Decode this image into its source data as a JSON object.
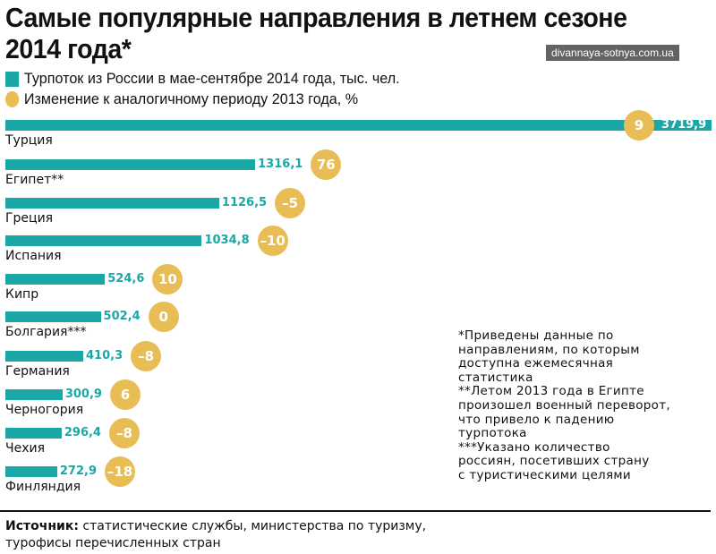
{
  "watermark": "divannaya-sotnya.com.ua",
  "chart_data": {
    "type": "bar",
    "title": "Самые популярные направления в летнем сезоне 2014 года*",
    "legend": [
      {
        "name": "Турпоток из России в мае-сентябре 2014 года, тыс. чел.",
        "color": "#1aa7a5",
        "marker": "square"
      },
      {
        "name": "Изменение к аналогичному периоду 2013 года, %",
        "color": "#e8bd55",
        "marker": "circle"
      }
    ],
    "orientation": "horizontal",
    "categories": [
      "Турция",
      "Египет**",
      "Греция",
      "Испания",
      "Кипр",
      "Болгария***",
      "Германия",
      "Черногория",
      "Чехия",
      "Финляндия"
    ],
    "series": [
      {
        "name": "Турпоток из России в мае-сентябре 2014 года, тыс. чел.",
        "values": [
          3719.9,
          1316.1,
          1126.5,
          1034.8,
          524.6,
          502.4,
          410.3,
          300.9,
          296.4,
          272.9
        ],
        "labels": [
          "3719,9",
          "1316,1",
          "1126,5",
          "1034,8",
          "524,6",
          "502,4",
          "410,3",
          "300,9",
          "296,4",
          "272,9"
        ]
      },
      {
        "name": "Изменение к аналогичному периоду 2013 года, %",
        "values": [
          9,
          76,
          -5,
          -10,
          10,
          0,
          -8,
          6,
          -8,
          -18
        ],
        "labels": [
          "9",
          "76",
          "–5",
          "–10",
          "10",
          "0",
          "–8",
          "6",
          "–8",
          "–18"
        ]
      }
    ]
  },
  "notes": "*Приведены данные по\nнаправлениям, по которым\nдоступна ежемесячная\nстатистика\n**Летом 2013 года в Египте\nпроизошел военный переворот,\nчто привело к падению\nтурпотока\n***Указано количество\nроссиян, посетивших страну\nс туристическими целями",
  "source": {
    "label": "Источник:",
    "line1": " статистические службы, министерства по туризму,",
    "line2": "турофисы перечисленных стран"
  }
}
